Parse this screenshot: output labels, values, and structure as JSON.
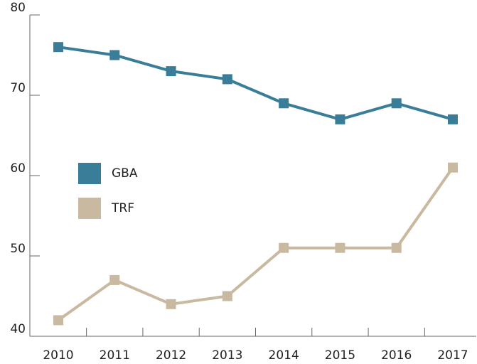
{
  "chart_data": {
    "type": "line",
    "categories": [
      "2010",
      "2011",
      "2012",
      "2013",
      "2014",
      "2015",
      "2016",
      "2017"
    ],
    "series": [
      {
        "name": "GBA",
        "color": "#3a7d98",
        "values": [
          76,
          75,
          73,
          72,
          69,
          67,
          69,
          67
        ]
      },
      {
        "name": "TRF",
        "color": "#c8b9a0",
        "values": [
          42,
          47,
          44,
          45,
          51,
          51,
          51,
          61
        ]
      }
    ],
    "ylim": [
      40,
      80
    ],
    "yticks": [
      40,
      50,
      60,
      70,
      80
    ],
    "grid": false,
    "legend": "center-left"
  }
}
